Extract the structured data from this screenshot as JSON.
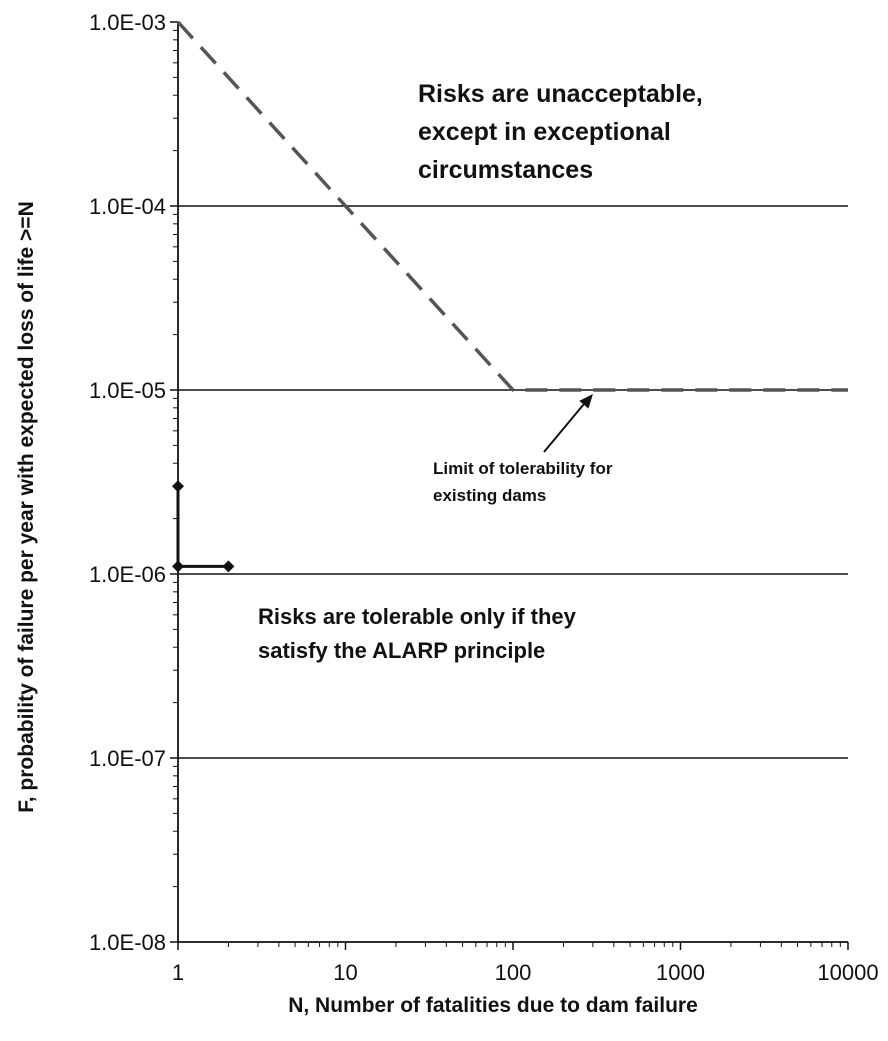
{
  "chart_data": {
    "type": "line",
    "xscale": "log",
    "yscale": "log",
    "xlim": [
      1,
      10000
    ],
    "ylim": [
      1e-08,
      0.001
    ],
    "xlabel": "N, Number of fatalities due to dam failure",
    "ylabel": "F, probability of failure per year with expected loss of life >=N",
    "x_tick_labels": [
      {
        "value": 1,
        "label": "1"
      },
      {
        "value": 10,
        "label": "10"
      },
      {
        "value": 100,
        "label": "100"
      },
      {
        "value": 1000,
        "label": "1000"
      },
      {
        "value": 10000,
        "label": "10000"
      }
    ],
    "y_tick_labels": [
      {
        "value": 0.001,
        "label": "1.0E-03"
      },
      {
        "value": 0.0001,
        "label": "1.0E-04"
      },
      {
        "value": 1e-05,
        "label": "1.0E-05"
      },
      {
        "value": 1e-06,
        "label": "1.0E-06"
      },
      {
        "value": 1e-07,
        "label": "1.0E-07"
      },
      {
        "value": 1e-08,
        "label": "1.0E-08"
      }
    ],
    "grid": {
      "horizontal_major": true,
      "vertical": false
    },
    "series": [
      {
        "style": "dashed",
        "color": "#555555",
        "points": [
          [
            1,
            0.001
          ],
          [
            100,
            1e-05
          ],
          [
            10000,
            1e-05
          ]
        ]
      },
      {
        "style": "solid-with-markers",
        "color": "#111111",
        "points": [
          [
            1,
            3e-06
          ],
          [
            1,
            1.1e-06
          ],
          [
            2,
            1.1e-06
          ]
        ]
      }
    ],
    "annotations": [
      {
        "lines": [
          "Risks are unacceptable,",
          "except in exceptional",
          "circumstances"
        ],
        "style": "big"
      },
      {
        "lines": [
          "Limit of tolerability for",
          "existing dams"
        ],
        "style": "small",
        "arrow_to": [
          300,
          1e-05
        ]
      },
      {
        "lines": [
          "Risks are tolerable only if they",
          "satisfy the ALARP principle"
        ],
        "style": "mid"
      }
    ]
  }
}
